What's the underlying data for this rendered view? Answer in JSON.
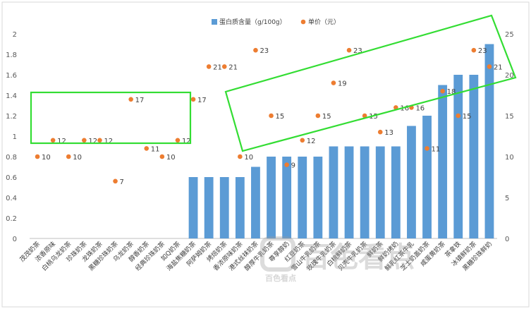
{
  "chart_data": {
    "type": "bar",
    "categories": [
      "茂茂奶茶",
      "浓香原味",
      "白桃乌龙奶茶",
      "珍珠奶茶",
      "龙珠奶茶",
      "黑糖珍珠奶茶",
      "乌龙奶茶",
      "醇香奶茶",
      "经典珍珠奶茶",
      "如Q奶茶",
      "海盐焦糖奶茶",
      "阿萨姆奶茶",
      "烤焙奶茶",
      "香浓原味奶茶",
      "港式丝袜奶茶",
      "醇厚牛乳奶茶",
      "尊享醇奶",
      "红豆奶茶",
      "雪山牛乳奶茶",
      "玫瑰牛乳奶茶",
      "白桃鲜奶茶",
      "贝壳牛乳奶茶",
      "鲜奶茶",
      "鲜奶烤奶",
      "鲜乳红茶牛乳",
      "芝士奶盖奶茶",
      "咸蛋黄奶茶",
      "茶拿铁",
      "冰镇鲜奶茶",
      "黑糖珍珠鲜奶"
    ],
    "series": [
      {
        "name": "蛋白质含量（g/100g）",
        "type": "bar",
        "axis": "left",
        "color": "#5B9BD5",
        "values": [
          0,
          0,
          0,
          0,
          0,
          0,
          0,
          0,
          0,
          0,
          0.6,
          0.6,
          0.6,
          0.6,
          0.7,
          0.8,
          0.8,
          0.8,
          0.8,
          0.9,
          0.9,
          0.9,
          0.9,
          0.9,
          1.1,
          1.2,
          1.5,
          1.6,
          1.6,
          1.9
        ]
      },
      {
        "name": "单价（元）",
        "type": "scatter",
        "axis": "right",
        "color": "#ED7D31",
        "values": [
          10,
          12,
          10,
          12,
          12,
          7,
          17,
          11,
          10,
          12,
          17,
          21,
          21,
          10,
          23,
          15,
          9,
          12,
          15,
          19,
          23,
          15,
          13,
          16,
          16,
          11,
          18,
          15,
          23,
          21
        ]
      }
    ],
    "y_left": {
      "min": 0,
      "max": 2,
      "ticks": [
        "0",
        "0.2",
        "0.4",
        "0.6",
        "0.8",
        "1",
        "1.2",
        "1.4",
        "1.6",
        "1.8",
        "2"
      ]
    },
    "y_right": {
      "min": 0,
      "max": 25,
      "ticks": [
        "0",
        "5",
        "10",
        "15",
        "20",
        "25"
      ]
    },
    "legend_position": "top",
    "grid": false,
    "annotations": [
      "green-highlight-box-left",
      "green-highlight-box-right"
    ]
  },
  "watermark": {
    "text": "百色看点",
    "small_text": "百色看点"
  },
  "colors": {
    "frame": "#d9d9d9",
    "highlight": "#33dd33"
  }
}
